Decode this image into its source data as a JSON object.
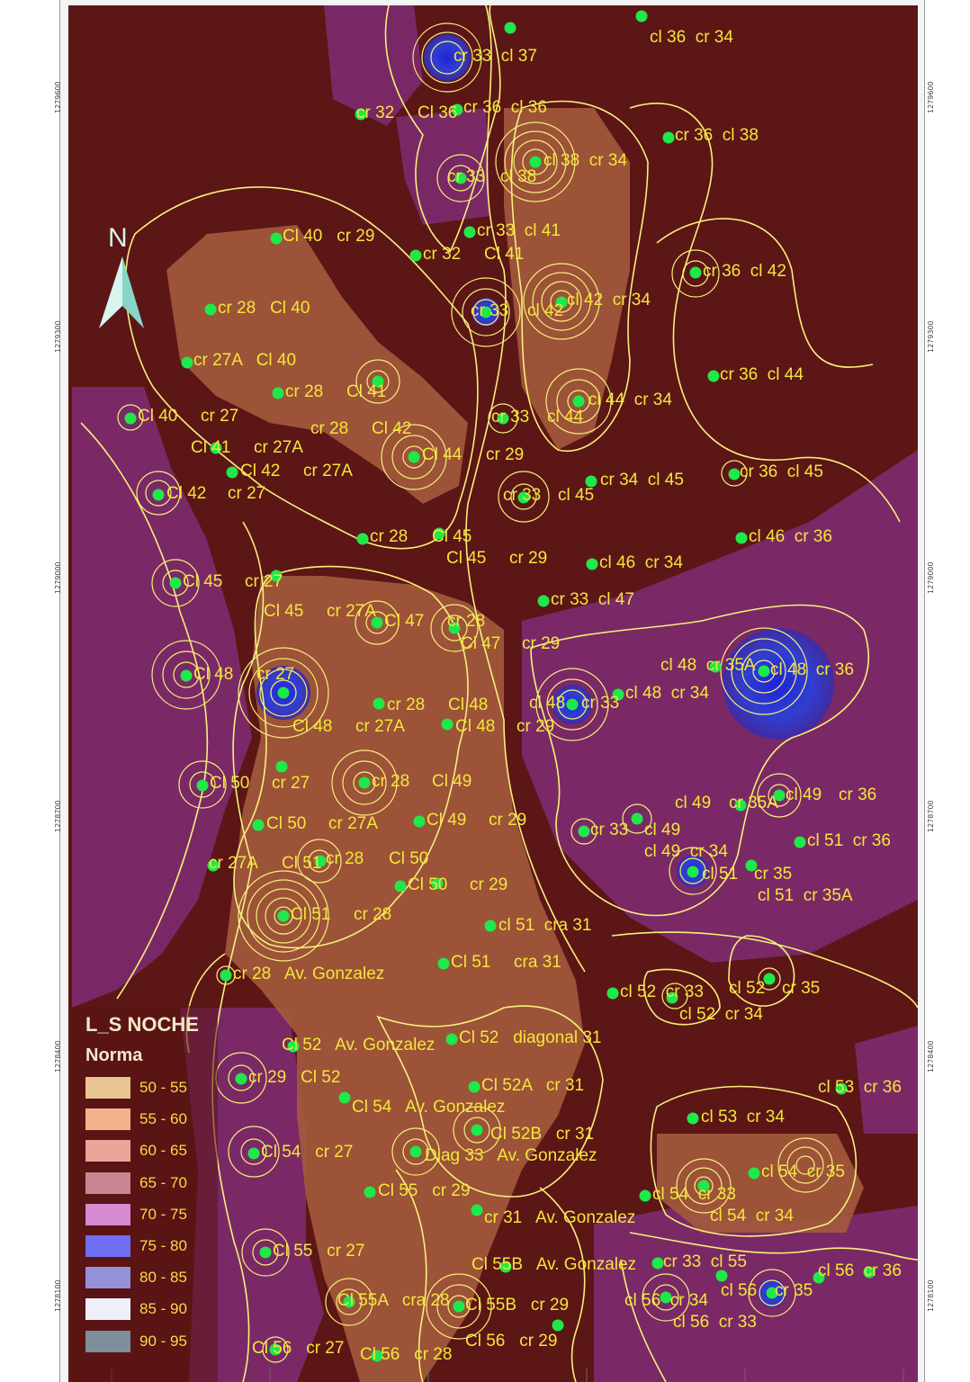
{
  "legend": {
    "title": "L_S NOCHE",
    "subtitle": "Norma",
    "items": [
      {
        "label": "50 - 55",
        "color": "#e9c592"
      },
      {
        "label": "55 - 60",
        "color": "#f2b48c"
      },
      {
        "label": "60 - 65",
        "color": "#eda49a"
      },
      {
        "label": "65 - 70",
        "color": "#c98590"
      },
      {
        "label": "70 - 75",
        "color": "#d68ad0"
      },
      {
        "label": "75 - 80",
        "color": "#6f6ef2"
      },
      {
        "label": "80 - 85",
        "color": "#9590d8"
      },
      {
        "label": "85 - 90",
        "color": "#efeffa"
      },
      {
        "label": "90 - 95",
        "color": "#7d8f9a"
      }
    ]
  },
  "north_label": "N",
  "coordinates": [
    "1279600",
    "1279300",
    "1279000",
    "1278700",
    "1278400",
    "1278100"
  ],
  "colors": {
    "contour": "#f7f07a",
    "label": "#f5e63a",
    "point": "#1fe84a",
    "dark_base": "#5a1414"
  },
  "locations": [
    {
      "text": "cr 33  cl 37"
    },
    {
      "text": "cl 36  cr 34"
    },
    {
      "text": "cr 32"
    },
    {
      "text": "Cl 36"
    },
    {
      "text": "cr 36  cl 36"
    },
    {
      "text": "cr 36  cl 38"
    },
    {
      "text": "cr 33"
    },
    {
      "text": "cl 38"
    },
    {
      "text": "cl 38  cr 34"
    },
    {
      "text": "Cl 40   cr 29"
    },
    {
      "text": "cr 33  cl 41"
    },
    {
      "text": "cr 32"
    },
    {
      "text": "Cl 41"
    },
    {
      "text": "cr 36  cl 42"
    },
    {
      "text": "cr 28   Cl 40"
    },
    {
      "text": "cr 33"
    },
    {
      "text": "cl 42"
    },
    {
      "text": "cl 42  cr 34"
    },
    {
      "text": "cr 27A   Cl 40"
    },
    {
      "text": "cr 36  cl 44"
    },
    {
      "text": "cr 28"
    },
    {
      "text": "Cl 41"
    },
    {
      "text": "Cl 40"
    },
    {
      "text": "cr 27"
    },
    {
      "text": "cl 44  cr 34"
    },
    {
      "text": "cr 28"
    },
    {
      "text": "Cl 42"
    },
    {
      "text": "cr 33"
    },
    {
      "text": "cl 44"
    },
    {
      "text": "Cl 41"
    },
    {
      "text": "cr 27A"
    },
    {
      "text": "Cl 44"
    },
    {
      "text": "cr 29"
    },
    {
      "text": "Cl 42"
    },
    {
      "text": "cr 27A"
    },
    {
      "text": "cr 34  cl 45"
    },
    {
      "text": "cr 36  cl 45"
    },
    {
      "text": "Cl 42"
    },
    {
      "text": "cr 27"
    },
    {
      "text": "cr 33"
    },
    {
      "text": "cl 45"
    },
    {
      "text": "cr 28"
    },
    {
      "text": "Cl 45"
    },
    {
      "text": "cl 46  cr 36"
    },
    {
      "text": "Cl 45"
    },
    {
      "text": "cr 29"
    },
    {
      "text": "cl 46  cr 34"
    },
    {
      "text": "Cl 45"
    },
    {
      "text": "cr 27"
    },
    {
      "text": "cr 33  cl 47"
    },
    {
      "text": "Cl 45"
    },
    {
      "text": "cr 27A"
    },
    {
      "text": "Cl 47"
    },
    {
      "text": "cr 28"
    },
    {
      "text": "Cl 47"
    },
    {
      "text": "cr 29"
    },
    {
      "text": "cl 48  cr 35A"
    },
    {
      "text": "cl 48  cr 36"
    },
    {
      "text": "Cl 48"
    },
    {
      "text": "cr 27"
    },
    {
      "text": "cl 48  cr 34"
    },
    {
      "text": "cr 28"
    },
    {
      "text": "Cl 48"
    },
    {
      "text": "cl 48"
    },
    {
      "text": "cr 33"
    },
    {
      "text": "Cl 48"
    },
    {
      "text": "cr 27A"
    },
    {
      "text": "Cl 48"
    },
    {
      "text": "cr 29"
    },
    {
      "text": "Cl 50"
    },
    {
      "text": "cr 27"
    },
    {
      "text": "cr 28"
    },
    {
      "text": "Cl 49"
    },
    {
      "text": "cl 49"
    },
    {
      "text": "cr 35A"
    },
    {
      "text": "cl 49"
    },
    {
      "text": "cr 36"
    },
    {
      "text": "Cl 50"
    },
    {
      "text": "cr 27A"
    },
    {
      "text": "Cl 49"
    },
    {
      "text": "cr 29"
    },
    {
      "text": "cr 33"
    },
    {
      "text": "cl 49"
    },
    {
      "text": "cl 51  cr 36"
    },
    {
      "text": "cr 27A"
    },
    {
      "text": "Cl 51"
    },
    {
      "text": "cr 28"
    },
    {
      "text": "Cl 50"
    },
    {
      "text": "cl 49  cr 34"
    },
    {
      "text": "cl 51"
    },
    {
      "text": "cr 35"
    },
    {
      "text": "Cl 50"
    },
    {
      "text": "cr 29"
    },
    {
      "text": "cl 51  cr 35A"
    },
    {
      "text": "Cl 51"
    },
    {
      "text": "cr 28"
    },
    {
      "text": "cl 51  cra 31"
    },
    {
      "text": "Cl 51"
    },
    {
      "text": "cra 31"
    },
    {
      "text": "cr 28   Av. Gonzalez"
    },
    {
      "text": "cl 52  cr 33"
    },
    {
      "text": "cl 52"
    },
    {
      "text": "cr 35"
    },
    {
      "text": "cl 52  cr 34"
    },
    {
      "text": "Cl 52   Av. Gonzalez"
    },
    {
      "text": "Cl 52   diagonal 31"
    },
    {
      "text": "cr 29   Cl 52"
    },
    {
      "text": "Cl 52A   cr 31"
    },
    {
      "text": "cl 53  cr 36"
    },
    {
      "text": "Cl 54   Av. Gonzalez"
    },
    {
      "text": "cl 53  cr 34"
    },
    {
      "text": "Cl 52B   cr 31"
    },
    {
      "text": "Cl 54   cr 27"
    },
    {
      "text": "Diag 33   Av. Gonzalez"
    },
    {
      "text": "cl 54  cr 35"
    },
    {
      "text": "Cl 55   cr 29"
    },
    {
      "text": "cl 54  cr 33"
    },
    {
      "text": "cl 54  cr 34"
    },
    {
      "text": "cr 31   Av. Gonzalez"
    },
    {
      "text": "Cl 55   cr 27"
    },
    {
      "text": "Cl 55B   Av. Gonzalez"
    },
    {
      "text": "cr 33  cl 55"
    },
    {
      "text": "cl 56  cr 36"
    },
    {
      "text": "Cl 55A   cra 28"
    },
    {
      "text": "Cl 55B   cr 29"
    },
    {
      "text": "cl 56  cr 34"
    },
    {
      "text": "cl 56"
    },
    {
      "text": "cr 35"
    },
    {
      "text": "cl 56  cr 33"
    },
    {
      "text": "Cl 56   cr 27"
    },
    {
      "text": "Cl 56   cr 28"
    },
    {
      "text": "Cl 56   cr 29"
    }
  ]
}
